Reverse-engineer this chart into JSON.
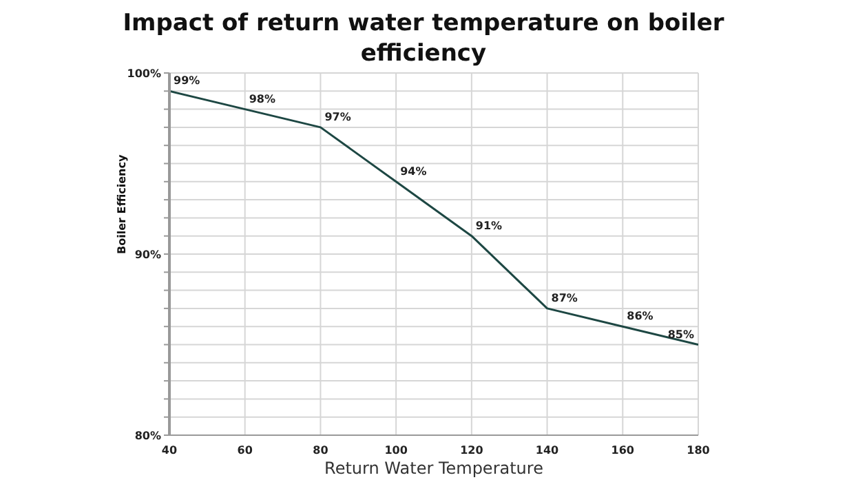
{
  "chart_data": {
    "type": "line",
    "title": "Impact of return water temperature on boiler efficiency",
    "xlabel": "Return Water Temperature",
    "ylabel": "Boiler Efficiency",
    "x": [
      40,
      60,
      80,
      100,
      120,
      140,
      160,
      180
    ],
    "series": [
      {
        "color": "#1d4743",
        "values": [
          99,
          98,
          97,
          94,
          91,
          87,
          86,
          85
        ],
        "value_labels": [
          "99%",
          "98%",
          "97%",
          "94%",
          "91%",
          "87%",
          "86%",
          "85%"
        ]
      }
    ],
    "xlim": [
      40,
      180
    ],
    "xticks": [
      40,
      60,
      80,
      100,
      120,
      140,
      160,
      180
    ],
    "ylim": [
      80,
      100
    ],
    "yticks": [
      {
        "value": 80,
        "label": "80%"
      },
      {
        "value": 81,
        "label": null
      },
      {
        "value": 82,
        "label": null
      },
      {
        "value": 83,
        "label": null
      },
      {
        "value": 84,
        "label": null
      },
      {
        "value": 85,
        "label": null
      },
      {
        "value": 86,
        "label": null
      },
      {
        "value": 87,
        "label": null
      },
      {
        "value": 88,
        "label": null
      },
      {
        "value": 89,
        "label": null
      },
      {
        "value": 90,
        "label": "90%"
      },
      {
        "value": 91,
        "label": null
      },
      {
        "value": 92,
        "label": null
      },
      {
        "value": 93,
        "label": null
      },
      {
        "value": 94,
        "label": null
      },
      {
        "value": 95,
        "label": null
      },
      {
        "value": 96,
        "label": null
      },
      {
        "value": 97,
        "label": null
      },
      {
        "value": 98,
        "label": null
      },
      {
        "value": 99,
        "label": null
      },
      {
        "value": 100,
        "label": "100%"
      }
    ],
    "grid": true,
    "marker": "none",
    "line_style": "solid",
    "legend": false
  }
}
